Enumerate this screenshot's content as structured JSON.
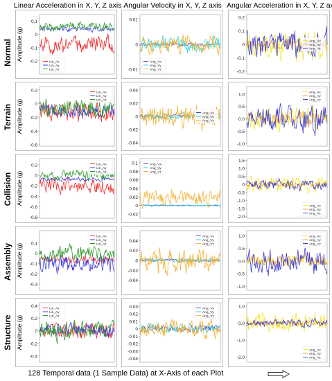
{
  "column_titles": [
    "Linear Acceleration in X, Y, Z axis",
    "Angular Velocity in X, Y, Z axis",
    "Angular Acceleration in X, Y, Z axis"
  ],
  "footer": {
    "text": "128 Temporal data (1 Sample Data) at X-Axis of each Plot",
    "arrow_icon": "right-arrow-icon"
  },
  "row_labels": [
    "Normal",
    "Terrain",
    "Collision",
    "Assembly",
    "Structure"
  ],
  "colors": {
    "lin": [
      "#ee2d2d",
      "#3a3ae0",
      "#2f9a2f"
    ],
    "ang_vel": [
      "#4a4ad8",
      "#34d8e0",
      "#f2b233"
    ],
    "ang_acc": [
      "#f2e632",
      "#f2a23a",
      "#3c3cd0"
    ]
  },
  "chart_data": [
    {
      "type": "line",
      "row": "Normal",
      "col": 0,
      "ylabel": "Amplitude (g)",
      "ylim": [
        -0.3,
        0.15
      ],
      "yticks": [
        "0.1",
        "0",
        "-0.1",
        "-0.2"
      ],
      "legend": [
        "Lin_Ax",
        "Lin_Ay",
        "Lin_Az"
      ],
      "legend_pos": "bottom-left",
      "gen": {
        "seed": 11,
        "base": [
          -0.07,
          0.04,
          0.06
        ],
        "amp": [
          0.11,
          0.03,
          0.05
        ]
      }
    },
    {
      "type": "line",
      "row": "Normal",
      "col": 1,
      "ylabel": "",
      "ylim": [
        -0.012,
        0.012
      ],
      "yticks": [
        "0.01",
        "0",
        "-0.01"
      ],
      "legend": [
        "Ang_Vx",
        "Ang_Vy",
        "Ang_Vz"
      ],
      "legend_pos": "bottom-left",
      "gen": {
        "seed": 12,
        "base": [
          0.0,
          0.0,
          0.0
        ],
        "amp": [
          0.001,
          0.005,
          0.006
        ]
      }
    },
    {
      "type": "line",
      "row": "Normal",
      "col": 2,
      "ylabel": "",
      "ylim": [
        -0.22,
        0.22
      ],
      "yticks": [
        "0.2",
        "0.1",
        "0",
        "-0.1",
        "-0.2"
      ],
      "legend": [
        "Ang_Ax",
        "Ang_Ay",
        "Ang_Az"
      ],
      "legend_pos": "middle-right",
      "gen": {
        "seed": 13,
        "base": [
          0.0,
          0.0,
          0.0
        ],
        "amp": [
          0.18,
          0.05,
          0.16
        ]
      }
    },
    {
      "type": "line",
      "row": "Terrain",
      "col": 0,
      "ylabel": "Amplitude (g)",
      "ylim": [
        -0.62,
        0.25
      ],
      "yticks": [
        "0.2",
        "0",
        "-0.2",
        "-0.4",
        "-0.6"
      ],
      "legend": [
        "Lin_Ax",
        "Lin_Ay",
        "Lin_Az"
      ],
      "legend_pos": "top-right",
      "gen": {
        "seed": 21,
        "base": [
          -0.12,
          -0.1,
          -0.06
        ],
        "amp": [
          0.22,
          0.15,
          0.22
        ]
      }
    },
    {
      "type": "line",
      "row": "Terrain",
      "col": 1,
      "ylabel": "",
      "ylim": [
        -0.045,
        0.045
      ],
      "yticks": [
        "0.04",
        "0.02",
        "0",
        "-0.02",
        "-0.04"
      ],
      "legend": [
        "Ang_Vx",
        "Ang_Vy",
        "Ang_Vz"
      ],
      "legend_pos": "middle-right",
      "gen": {
        "seed": 22,
        "base": [
          0.0,
          0.0,
          0.0
        ],
        "amp": [
          0.005,
          0.008,
          0.03
        ]
      }
    },
    {
      "type": "line",
      "row": "Terrain",
      "col": 2,
      "ylabel": "",
      "ylim": [
        -1.1,
        1.3
      ],
      "yticks": [
        "1.0",
        "0.5",
        "0.0",
        "-0.5",
        "-1.0"
      ],
      "legend": [
        "Ang_Ax",
        "Ang_Ay",
        "Ang_Az"
      ],
      "legend_pos": "top-right",
      "gen": {
        "seed": 23,
        "base": [
          0.0,
          0.0,
          0.0
        ],
        "amp": [
          0.7,
          0.35,
          0.8
        ]
      }
    },
    {
      "type": "line",
      "row": "Collision",
      "col": 0,
      "ylabel": "Amplitude (g)",
      "ylim": [
        -0.82,
        0.32
      ],
      "yticks": [
        "0.2",
        "0",
        "-0.2",
        "-0.4",
        "-0.6",
        "-0.8"
      ],
      "legend": [
        "Lin_Ax",
        "Lin_Ay",
        "Lin_Az"
      ],
      "legend_pos": "top-right",
      "gen": {
        "seed": 31,
        "base": [
          -0.2,
          -0.07,
          0.02
        ],
        "amp": [
          0.22,
          0.06,
          0.14
        ]
      }
    },
    {
      "type": "line",
      "row": "Collision",
      "col": 1,
      "ylabel": "",
      "ylim": [
        -0.03,
        0.11
      ],
      "yticks": [
        "0.1",
        "0.08",
        "0.06",
        "0.04",
        "0.02",
        "0",
        "-0.02"
      ],
      "legend": [
        "Ang_Vx",
        "Ang_Vy",
        "Ang_Vz"
      ],
      "legend_pos": "top-left",
      "gen": {
        "seed": 32,
        "base": [
          0.0,
          0.0,
          0.02
        ],
        "amp": [
          0.002,
          0.003,
          0.03
        ]
      }
    },
    {
      "type": "line",
      "row": "Collision",
      "col": 2,
      "ylabel": "",
      "ylim": [
        -2.1,
        1.6
      ],
      "yticks": [
        "1.5",
        "1.0",
        "0.5",
        "0",
        "-0.5",
        "-1.0",
        "-1.5",
        "-2.0"
      ],
      "legend": [
        "Ang_Ax",
        "Ang_Ay",
        "Ang_Az"
      ],
      "legend_pos": "bottom-right",
      "gen": {
        "seed": 33,
        "base": [
          0.0,
          0.0,
          0.0
        ],
        "amp": [
          0.8,
          0.25,
          0.5
        ]
      }
    },
    {
      "type": "line",
      "row": "Assembly",
      "col": 0,
      "ylabel": "Amplitude (g)",
      "ylim": [
        -0.36,
        0.22
      ],
      "yticks": [
        "0.1",
        "0",
        "-0.1",
        "-0.2",
        "-0.3"
      ],
      "legend": [
        "Lin_Ax",
        "Lin_Ay",
        "Lin_Az"
      ],
      "legend_pos": "top-right",
      "gen": {
        "seed": 41,
        "base": [
          -0.06,
          -0.1,
          0.0
        ],
        "amp": [
          0.06,
          0.13,
          0.12
        ]
      }
    },
    {
      "type": "line",
      "row": "Assembly",
      "col": 1,
      "ylabel": "",
      "ylim": [
        -0.06,
        0.06
      ],
      "yticks": [
        "0.04",
        "0.02",
        "0",
        "-0.02",
        "-0.04"
      ],
      "legend": [
        "Ang_Vx",
        "Ang_Vy",
        "Ang_Vz"
      ],
      "legend_pos": "top-right",
      "gen": {
        "seed": 42,
        "base": [
          0.0,
          0.0,
          0.0
        ],
        "amp": [
          0.004,
          0.007,
          0.04
        ]
      }
    },
    {
      "type": "line",
      "row": "Assembly",
      "col": 2,
      "ylabel": "",
      "ylim": [
        -1.15,
        1.2
      ],
      "yticks": [
        "1.0",
        "0.5",
        "0.0",
        "-0.5",
        "-1.0"
      ],
      "legend": [
        "Ang_Ax",
        "Ang_Ay",
        "Ang_Az"
      ],
      "legend_pos": "top-right",
      "gen": {
        "seed": 43,
        "base": [
          0.0,
          0.0,
          0.0
        ],
        "amp": [
          0.3,
          0.35,
          0.75
        ]
      }
    },
    {
      "type": "line",
      "row": "Structure",
      "col": 0,
      "ylabel": "Amplitude (g)",
      "ylim": [
        -0.5,
        0.45
      ],
      "yticks": [
        "0.4",
        "0.2",
        "0",
        "-0.2",
        "-0.4"
      ],
      "legend": [
        "Lin_Ax",
        "Lin_Ay",
        "Lin_Az"
      ],
      "legend_pos": "top-left",
      "gen": {
        "seed": 51,
        "base": [
          0.0,
          0.0,
          0.0
        ],
        "amp": [
          0.22,
          0.18,
          0.22
        ]
      }
    },
    {
      "type": "line",
      "row": "Structure",
      "col": 1,
      "ylabel": "",
      "ylim": [
        -0.045,
        0.035
      ],
      "yticks": [
        "0.03",
        "0.02",
        "0.01",
        "0",
        "-0.01",
        "-0.02",
        "-0.03",
        "-0.04"
      ],
      "legend": [
        "Ang_Vx",
        "Ang_Vy",
        "Ang_Vz"
      ],
      "legend_pos": "top-right",
      "gen": {
        "seed": 52,
        "base": [
          0.0,
          0.0,
          0.0
        ],
        "amp": [
          0.008,
          0.01,
          0.02
        ]
      }
    },
    {
      "type": "line",
      "row": "Structure",
      "col": 2,
      "ylabel": "",
      "ylim": [
        -2.3,
        1.2
      ],
      "yticks": [
        "1.0",
        "0.0",
        "-1.0",
        "-2.0"
      ],
      "legend": [
        "Ang_Ax",
        "Ang_Ay",
        "Ang_Az"
      ],
      "legend_pos": "bottom-right",
      "gen": {
        "seed": 53,
        "base": [
          0.0,
          0.0,
          0.0
        ],
        "amp": [
          0.9,
          0.25,
          0.35
        ]
      }
    }
  ]
}
